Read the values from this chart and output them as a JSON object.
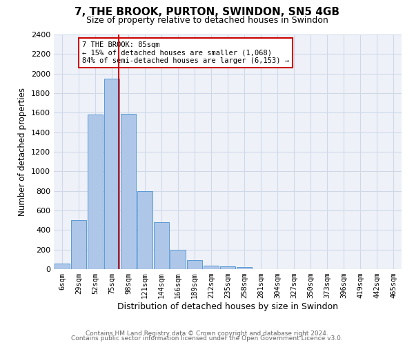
{
  "title": "7, THE BROOK, PURTON, SWINDON, SN5 4GB",
  "subtitle": "Size of property relative to detached houses in Swindon",
  "xlabel": "Distribution of detached houses by size in Swindon",
  "ylabel": "Number of detached properties",
  "footnote1": "Contains HM Land Registry data © Crown copyright and database right 2024.",
  "footnote2": "Contains public sector information licensed under the Open Government Licence v3.0.",
  "bar_labels": [
    "6sqm",
    "29sqm",
    "52sqm",
    "75sqm",
    "98sqm",
    "121sqm",
    "144sqm",
    "166sqm",
    "189sqm",
    "212sqm",
    "235sqm",
    "258sqm",
    "281sqm",
    "304sqm",
    "327sqm",
    "350sqm",
    "373sqm",
    "396sqm",
    "419sqm",
    "442sqm",
    "465sqm"
  ],
  "bar_values": [
    60,
    500,
    1580,
    1950,
    1590,
    800,
    480,
    195,
    90,
    35,
    25,
    20,
    0,
    0,
    0,
    0,
    0,
    0,
    0,
    0,
    0
  ],
  "bar_color": "#aec6e8",
  "bar_edge_color": "#5b9bd5",
  "vline_color": "#cc0000",
  "annotation_text": "7 THE BROOK: 85sqm\n← 15% of detached houses are smaller (1,068)\n84% of semi-detached houses are larger (6,153) →",
  "annotation_box_color": "#ffffff",
  "annotation_box_edge": "#cc0000",
  "ylim": [
    0,
    2400
  ],
  "yticks": [
    0,
    200,
    400,
    600,
    800,
    1000,
    1200,
    1400,
    1600,
    1800,
    2000,
    2200,
    2400
  ],
  "grid_color": "#d0d8e8",
  "bg_color": "#eef2f8",
  "title_fontsize": 11,
  "subtitle_fontsize": 9,
  "ylabel_fontsize": 8.5,
  "xlabel_fontsize": 9,
  "tick_fontsize": 8,
  "xtick_fontsize": 7.5,
  "footnote_fontsize": 6.5,
  "footnote_color": "#666666"
}
